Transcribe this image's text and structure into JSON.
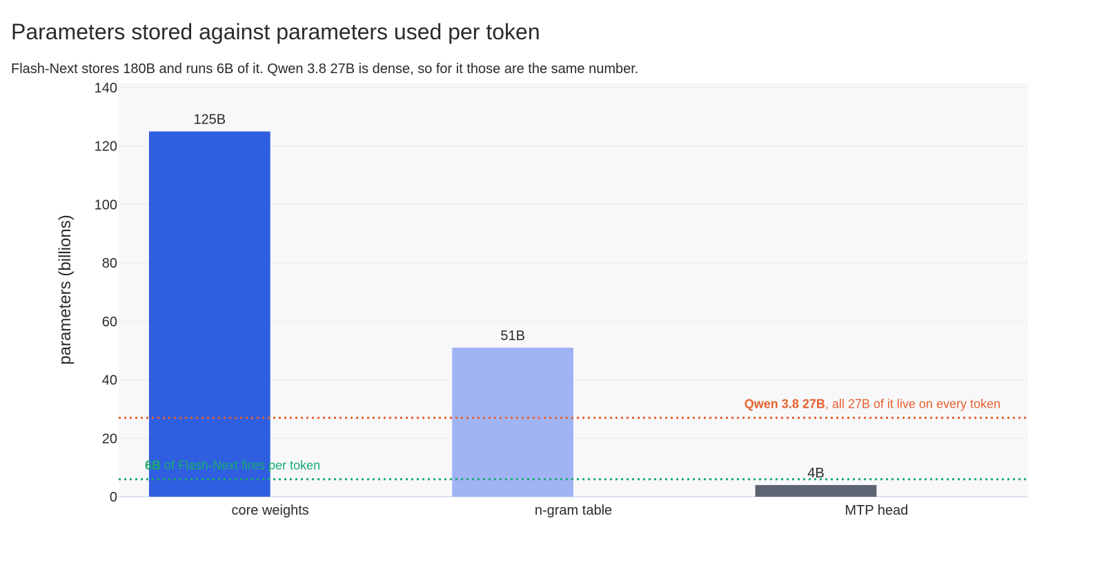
{
  "header": {
    "title": "Parameters stored against parameters used per token",
    "subtitle": "Flash-Next stores 180B and runs 6B of it. Qwen 3.8 27B is dense, so for it those are the same number."
  },
  "chart_data": {
    "type": "bar",
    "categories": [
      "core weights",
      "n-gram table",
      "MTP head"
    ],
    "values": [
      125,
      51,
      4
    ],
    "data_labels": [
      "125B",
      "51B",
      "4B"
    ],
    "bar_colors": [
      "#2f5fe0",
      "#a0b4f4",
      "#5c6372"
    ],
    "ylabel": "parameters (billions)",
    "xlabel": "",
    "ylim": [
      0,
      140
    ],
    "yticks": [
      0,
      20,
      40,
      60,
      80,
      100,
      120,
      140
    ],
    "grid": true,
    "plot_background": "#f8f8fa",
    "reference_lines": [
      {
        "value": 27,
        "color": "#e8602c",
        "style": "dotted",
        "label_bold": "Qwen 3.8 27B",
        "label_rest": ", all 27B of it live on every token",
        "label_anchor": "right"
      },
      {
        "value": 6,
        "color": "#1aab6f",
        "style": "dotted",
        "label_bold": "6B",
        "label_rest": " of Flash-Next fires per token",
        "label_anchor": "left"
      }
    ]
  }
}
